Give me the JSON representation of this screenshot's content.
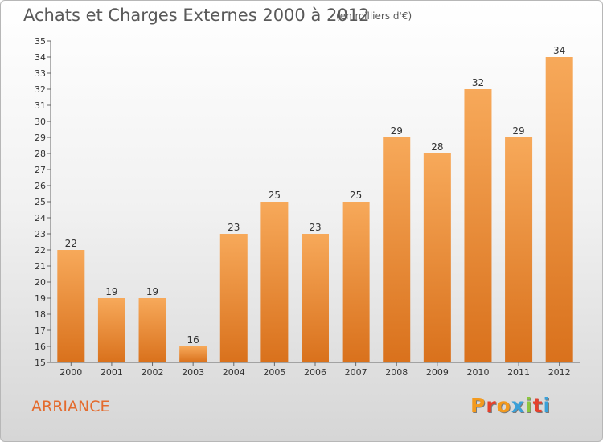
{
  "header": {
    "title": "Achats et Charges Externes 2000 à 2012",
    "unit": "(en milliers d'€)"
  },
  "footer": {
    "commune": "ARRIANCE",
    "logo_letters": [
      "P",
      "r",
      "o",
      "x",
      "i",
      "t",
      "i"
    ],
    "logo_colors": [
      "#f39a1e",
      "#e5412d",
      "#f39a1e",
      "#3aa0d8",
      "#8cc63f",
      "#e5412d",
      "#3aa0d8"
    ]
  },
  "colors": {
    "bar_top": "#f7a95a",
    "bar_bottom": "#d9711c",
    "axis": "#666666",
    "grid": "#cfcfcf",
    "text": "#333333"
  },
  "chart_data": {
    "type": "bar",
    "title": "Achats et Charges Externes 2000 à 2012",
    "subtitle": "(en milliers d'€)",
    "categories": [
      "2000",
      "2001",
      "2002",
      "2003",
      "2004",
      "2005",
      "2006",
      "2007",
      "2008",
      "2009",
      "2010",
      "2011",
      "2012"
    ],
    "values": [
      22,
      19,
      19,
      16,
      23,
      25,
      23,
      25,
      29,
      28,
      32,
      29,
      34
    ],
    "ylim": [
      15,
      35
    ],
    "yticks": [
      15,
      16,
      17,
      18,
      19,
      20,
      21,
      22,
      23,
      24,
      25,
      26,
      27,
      28,
      29,
      30,
      31,
      32,
      33,
      34,
      35
    ],
    "grid": false,
    "xlabel": "",
    "ylabel": ""
  }
}
